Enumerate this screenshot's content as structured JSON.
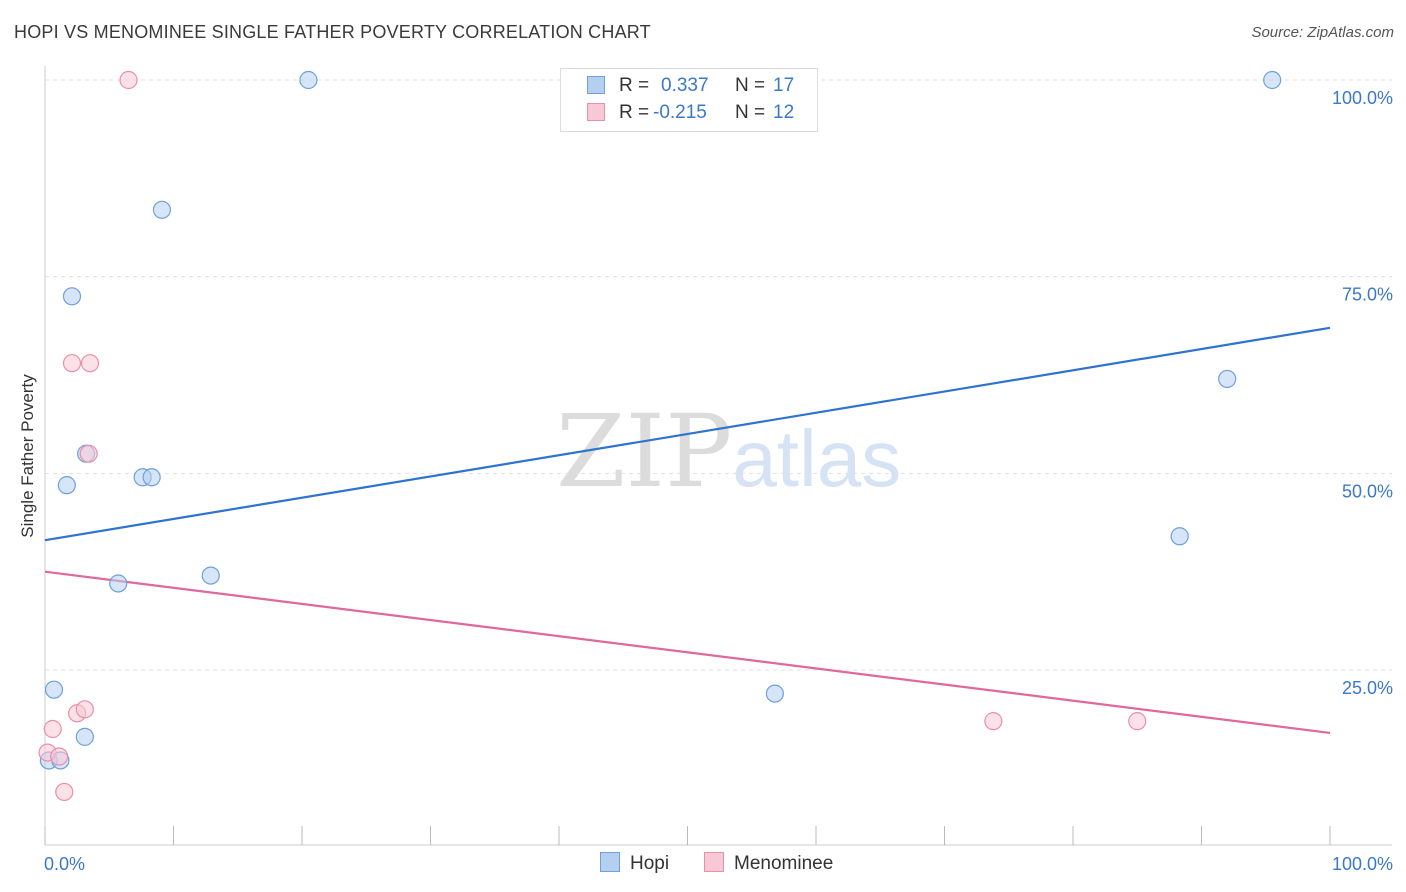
{
  "chart_data": {
    "type": "scatter",
    "title": "HOPI VS MENOMINEE SINGLE FATHER POVERTY CORRELATION CHART",
    "source": "Source: ZipAtlas.com",
    "xlabel": "",
    "ylabel": "Single Father Poverty",
    "xlim": [
      0,
      100
    ],
    "ylim": [
      0,
      100
    ],
    "x_tick_labels": [
      "0.0%",
      "100.0%"
    ],
    "y_tick_values": [
      25,
      50,
      75,
      100
    ],
    "y_tick_labels": [
      "25.0%",
      "50.0%",
      "75.0%",
      "100.0%"
    ],
    "watermark": {
      "left": "ZIP",
      "right": "atlas"
    },
    "legend": [
      {
        "name": "Hopi",
        "r_label": "R =",
        "r": "0.337",
        "n_label": "N =",
        "n": "17"
      },
      {
        "name": "Menominee",
        "r_label": "R =",
        "r": "-0.215",
        "n_label": "N =",
        "n": "12"
      }
    ],
    "series": [
      {
        "name": "Hopi",
        "color": "#6fa0dc",
        "fill": "#b5cff0",
        "line_color": "#2f73d0",
        "trend": {
          "x": [
            0,
            100
          ],
          "y": [
            41.5,
            68.5
          ]
        },
        "points": [
          {
            "x": 0.3,
            "y": 13.5
          },
          {
            "x": 0.7,
            "y": 22.5
          },
          {
            "x": 1.2,
            "y": 13.5
          },
          {
            "x": 1.7,
            "y": 48.5
          },
          {
            "x": 2.1,
            "y": 72.5
          },
          {
            "x": 3.1,
            "y": 16.5
          },
          {
            "x": 3.2,
            "y": 52.5
          },
          {
            "x": 5.7,
            "y": 36.0
          },
          {
            "x": 7.6,
            "y": 49.5
          },
          {
            "x": 8.3,
            "y": 49.5
          },
          {
            "x": 9.1,
            "y": 83.5
          },
          {
            "x": 12.9,
            "y": 37.0
          },
          {
            "x": 20.5,
            "y": 100.0
          },
          {
            "x": 56.8,
            "y": 22.0
          },
          {
            "x": 88.3,
            "y": 42.0
          },
          {
            "x": 92.0,
            "y": 62.0
          },
          {
            "x": 95.5,
            "y": 100.0
          }
        ]
      },
      {
        "name": "Menominee",
        "color": "#e890aa",
        "fill": "#f9c8d6",
        "line_color": "#e0689a",
        "trend": {
          "x": [
            0,
            100
          ],
          "y": [
            37.5,
            17.0
          ]
        },
        "points": [
          {
            "x": 0.2,
            "y": 14.5
          },
          {
            "x": 0.6,
            "y": 17.5
          },
          {
            "x": 1.1,
            "y": 14.0
          },
          {
            "x": 1.5,
            "y": 9.5
          },
          {
            "x": 2.1,
            "y": 64.0
          },
          {
            "x": 2.5,
            "y": 19.5
          },
          {
            "x": 3.1,
            "y": 20.0
          },
          {
            "x": 3.4,
            "y": 52.5
          },
          {
            "x": 3.5,
            "y": 64.0
          },
          {
            "x": 6.5,
            "y": 100.0
          },
          {
            "x": 73.8,
            "y": 18.5
          },
          {
            "x": 85.0,
            "y": 18.5
          }
        ]
      }
    ]
  }
}
